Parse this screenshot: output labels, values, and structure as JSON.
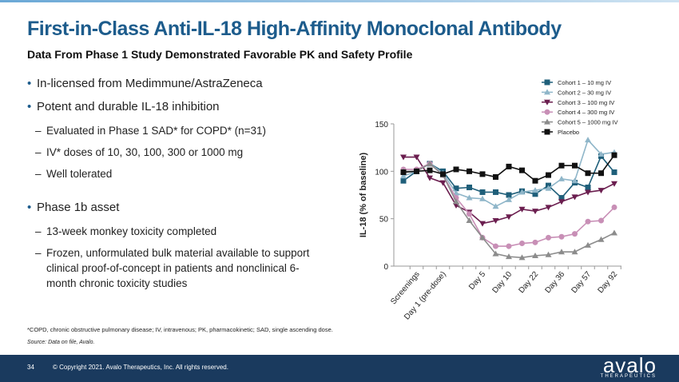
{
  "header": {
    "title": "First-in-Class Anti-IL-18 High-Affinity Monoclonal Antibody",
    "subtitle": "Data From Phase 1 Study Demonstrated Favorable PK and Safety Profile"
  },
  "bullets": [
    {
      "text": "In-licensed from Medimmune/AstraZeneca",
      "sub": []
    },
    {
      "text": "Potent and durable IL-18 inhibition",
      "sub": [
        "Evaluated in Phase 1 SAD* for COPD* (n=31)",
        "IV* doses of 10, 30, 100, 300 or 1000 mg",
        "Well tolerated"
      ]
    },
    {
      "text": "Phase 1b asset",
      "sub": [
        "13-week monkey toxicity completed",
        "Frozen, unformulated bulk material available to support clinical proof-of-concept in patients and nonclinical 6-month chronic toxicity studies"
      ]
    }
  ],
  "footnote": "*COPD, chronic obstructive pulmonary disease; IV, intravenous; PK, pharmacokinetic; SAD, single ascending dose.",
  "source": "Source: Data on file, Avalo.",
  "footer": {
    "page": "34",
    "copyright": "© Copyright 2021. Avalo Therapeutics, Inc. All rights reserved.",
    "logo": "avalo",
    "logo_sub": "THERAPEUTICS"
  },
  "chart_data": {
    "type": "line",
    "ylabel": "IL-18 (% of baseline)",
    "ylim": [
      0,
      150
    ],
    "yticks": [
      0,
      50,
      100,
      150
    ],
    "categories": [
      null,
      "Screenings",
      null,
      "Day 1 (pre-dose)",
      null,
      null,
      "Day 5",
      null,
      "Day 10",
      null,
      "Day 22",
      null,
      "Day 36",
      null,
      "Day 57",
      null,
      "Day 92"
    ],
    "series": [
      {
        "name": "Cohort 1 – 10 mg IV",
        "color": "#1f5f7a",
        "marker": "square",
        "values": [
          90,
          100,
          108,
          100,
          82,
          83,
          78,
          78,
          75,
          79,
          76,
          85,
          72,
          88,
          83,
          116,
          99
        ]
      },
      {
        "name": "Cohort 2 – 30 mg IV",
        "color": "#8fb6c9",
        "marker": "triangle",
        "values": [
          95,
          100,
          108,
          98,
          77,
          72,
          71,
          63,
          70,
          78,
          80,
          82,
          92,
          90,
          133,
          118,
          120
        ]
      },
      {
        "name": "Cohort 3 – 100 mg IV",
        "color": "#6b1e4f",
        "marker": "triangle-down",
        "values": [
          115,
          115,
          93,
          88,
          64,
          57,
          45,
          48,
          52,
          60,
          58,
          62,
          68,
          73,
          78,
          80,
          87
        ]
      },
      {
        "name": "Cohort 4 – 300 mg IV",
        "color": "#c88fb6",
        "marker": "circle",
        "values": [
          102,
          102,
          108,
          96,
          72,
          55,
          30,
          21,
          21,
          24,
          25,
          30,
          31,
          34,
          47,
          48,
          62
        ]
      },
      {
        "name": "Cohort 5 – 1000 mg IV",
        "color": "#8c8c8c",
        "marker": "triangle",
        "values": [
          100,
          100,
          108,
          96,
          68,
          48,
          30,
          13,
          10,
          9,
          11,
          12,
          15,
          15,
          22,
          28,
          35
        ]
      },
      {
        "name": "Placebo",
        "color": "#111111",
        "marker": "square",
        "values": [
          99,
          100,
          101,
          97,
          102,
          100,
          97,
          94,
          105,
          101,
          90,
          96,
          106,
          106,
          98,
          98,
          117
        ]
      }
    ]
  }
}
